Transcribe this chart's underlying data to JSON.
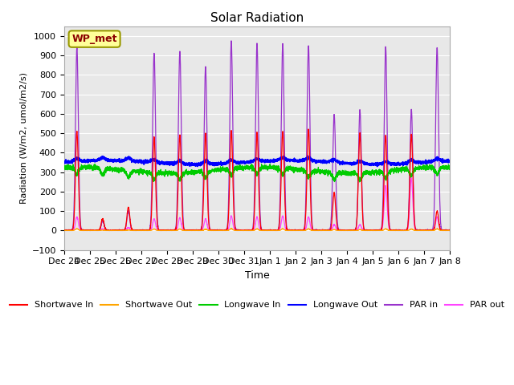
{
  "title": "Solar Radiation",
  "xlabel": "Time",
  "ylabel": "Radiation (W/m2, umol/m2/s)",
  "ylim": [
    -100,
    1050
  ],
  "n_days": 15,
  "tick_labels": [
    "Dec 24",
    "Dec 25",
    "Dec 26",
    "Dec 27",
    "Dec 28",
    "Dec 29",
    "Dec 30",
    "Dec 31",
    "Jan 1",
    "Jan 2",
    "Jan 3",
    "Jan 4",
    "Jan 5",
    "Jan 6",
    "Jan 7",
    "Jan 8"
  ],
  "annotation_label": "WP_met",
  "bg_color": "#FFFFFF",
  "plot_bg": "#E8E8E8",
  "grid_color": "#FFFFFF",
  "colors": {
    "sw_in": "#FF0000",
    "sw_out": "#FFA500",
    "lw_in": "#00CC00",
    "lw_out": "#0000FF",
    "par_in": "#9933CC",
    "par_out": "#FF44FF"
  },
  "legend_labels": [
    "Shortwave In",
    "Shortwave Out",
    "Longwave In",
    "Longwave Out",
    "PAR in",
    "PAR out"
  ]
}
